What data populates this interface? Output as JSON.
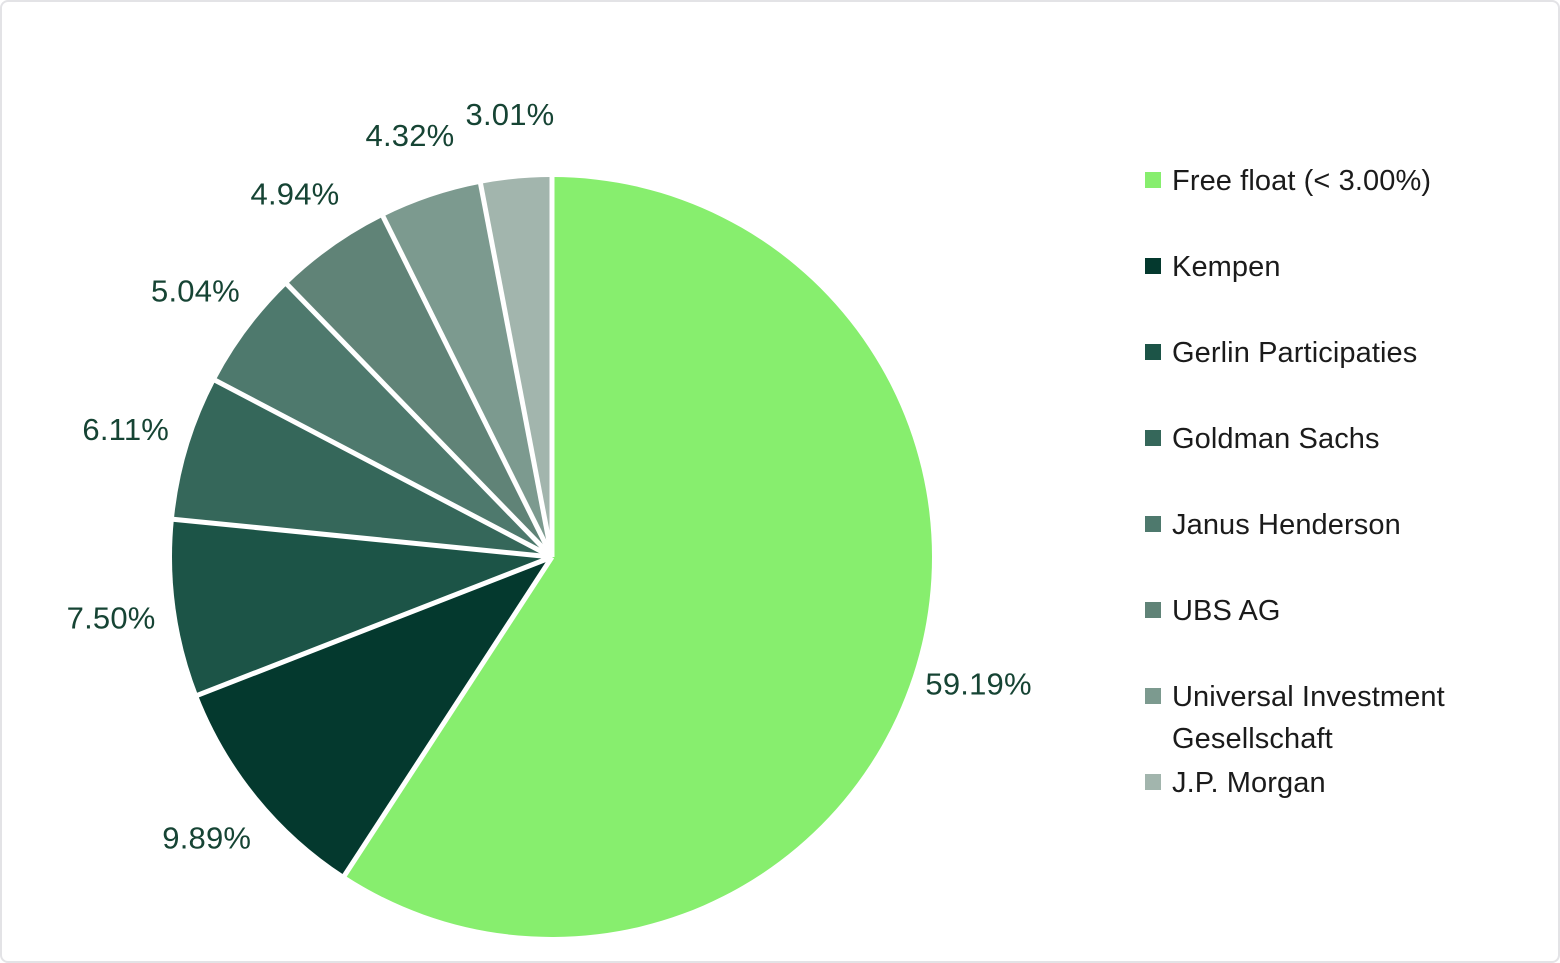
{
  "chart_data": {
    "type": "pie",
    "title": "",
    "legend_position": "right",
    "direction": "clockwise",
    "start_angle_deg": 0,
    "background": "#FFFFFF",
    "separator_color": "#FFFFFF",
    "data_label_color": "#164434",
    "legend_text_color": "#1B1B1B",
    "frame_border_color": "#E3E3E6",
    "slices": [
      {
        "label": "Free float (< 3.00%)",
        "value": 59.19,
        "display": "59.19%",
        "color": "#87EE6E"
      },
      {
        "label": "Kempen",
        "value": 9.89,
        "display": "9.89%",
        "color": "#04392E"
      },
      {
        "label": "Gerlin Participaties",
        "value": 7.5,
        "display": "7.50%",
        "color": "#1C5447"
      },
      {
        "label": "Goldman Sachs",
        "value": 6.11,
        "display": "6.11%",
        "color": "#35675A"
      },
      {
        "label": "Janus Henderson",
        "value": 5.04,
        "display": "5.04%",
        "color": "#4E796D"
      },
      {
        "label": "UBS AG",
        "value": 4.94,
        "display": "4.94%",
        "color": "#608377"
      },
      {
        "label": "Universal Investment Gesellschaft",
        "value": 4.32,
        "display": "4.32%",
        "color": "#7C9A8F"
      },
      {
        "label": "J.P. Morgan",
        "value": 3.01,
        "display": "3.01%",
        "color": "#A2B5AD"
      }
    ]
  }
}
